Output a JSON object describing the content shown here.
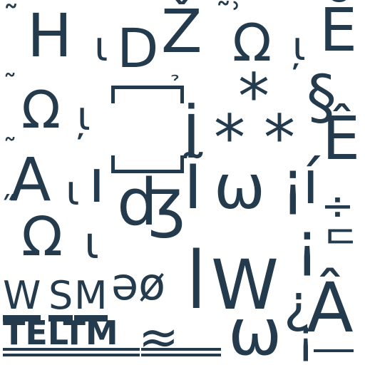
{
  "glyphs": {
    "r1_tilde": "˜",
    "r1_H": "H",
    "r1_iota": "ι",
    "r1_D": "D",
    "r1_Z": "Ž",
    "r1_tildecomma": "˜ʾ",
    "r1_omega": "Ω",
    "r1_iotacomma": "ι̦",
    "r1_E": "Ĕ",
    "r2_tilde": "˜",
    "r2_omega": "Ω",
    "r2_iotacomma": "ι̦",
    "r2_hook": "̉",
    "r2_star": "*",
    "r2_section": "§",
    "r3_I": "İ",
    "r3_stars": "*",
    "r3_star2": "*",
    "r3_E": "Ê",
    "r4_tilde": "˜",
    "r4_A": "A",
    "r4_iota": "ι",
    "r4_u": "ı",
    "r4_dz": "ʤ",
    "r4_I": "Ĩ",
    "r4_omega": "ω",
    "r4_excl": "¡",
    "r4_i": "í",
    "r4_divide": "÷",
    "r5_quote": "˝",
    "r5_omega": "Ω",
    "r5_iota": "ι",
    "r5_schwa": "əø",
    "r5_bar": "ǀ",
    "r5_W": "W",
    "r5_i": "¡",
    "r5_corner": "ᄃ",
    "r6_W": "W",
    "r6_S": "S",
    "r6_M": "M",
    "r6_dots": "ʖ",
    "r6_invq": "¿",
    "r6_A": "Â",
    "r7_TELTM": "TELTM",
    "r7_dot": ".",
    "r7_tilde": "≈",
    "r7_omega": "ω",
    "r7_invexcl": "¡"
  },
  "colors": {
    "ink": "#243b4d",
    "background": "#ffffff"
  }
}
